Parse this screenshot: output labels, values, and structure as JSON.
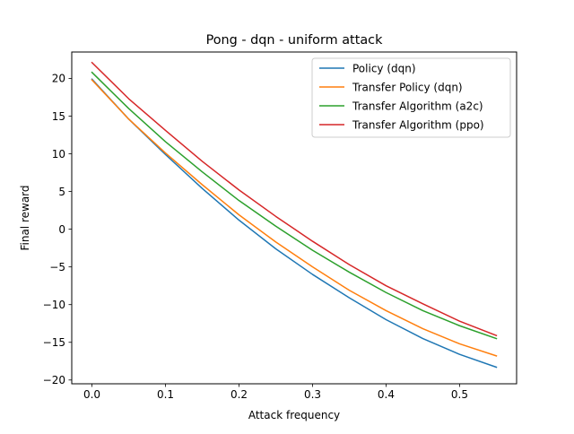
{
  "chart_data": {
    "type": "line",
    "title": "Pong - dqn - uniform attack",
    "xlabel": "Attack frequency",
    "ylabel": "Final reward",
    "xlim": [
      -0.0275,
      0.5775
    ],
    "ylim": [
      -20.5,
      23.5
    ],
    "xticks": [
      0.0,
      0.1,
      0.2,
      0.3,
      0.4,
      0.5
    ],
    "xtick_labels": [
      "0.0",
      "0.1",
      "0.2",
      "0.3",
      "0.4",
      "0.5"
    ],
    "yticks": [
      -20,
      -15,
      -10,
      -5,
      0,
      5,
      10,
      15,
      20
    ],
    "ytick_labels": [
      "−20",
      "−15",
      "−10",
      "−5",
      "0",
      "5",
      "10",
      "15",
      "20"
    ],
    "grid": false,
    "legend_position": "top-right",
    "x": [
      0.0,
      0.05,
      0.1,
      0.15,
      0.2,
      0.25,
      0.3,
      0.35,
      0.4,
      0.45,
      0.5,
      0.55
    ],
    "series": [
      {
        "name": "Policy (dqn)",
        "color": "#1f77b4",
        "values": [
          19.9,
          14.6,
          9.9,
          5.4,
          1.2,
          -2.6,
          -6.0,
          -9.1,
          -12.0,
          -14.5,
          -16.6,
          -18.3
        ]
      },
      {
        "name": "Transfer Policy (dqn)",
        "color": "#ff7f0e",
        "values": [
          19.8,
          14.6,
          10.1,
          5.9,
          1.9,
          -1.7,
          -5.0,
          -8.1,
          -10.8,
          -13.2,
          -15.2,
          -16.8
        ]
      },
      {
        "name": "Transfer Algorithm (a2c)",
        "color": "#2ca02c",
        "values": [
          20.8,
          16.0,
          11.6,
          7.6,
          3.8,
          0.4,
          -2.8,
          -5.7,
          -8.4,
          -10.8,
          -12.8,
          -14.5
        ]
      },
      {
        "name": "Transfer Algorithm (ppo)",
        "color": "#d62728",
        "values": [
          22.1,
          17.3,
          13.1,
          9.0,
          5.2,
          1.7,
          -1.6,
          -4.7,
          -7.5,
          -9.9,
          -12.2,
          -14.1
        ]
      }
    ]
  }
}
